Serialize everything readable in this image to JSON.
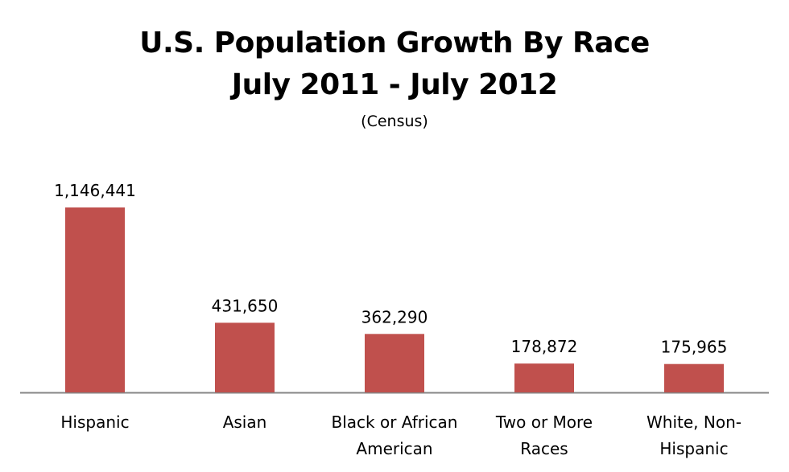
{
  "chart_data": {
    "type": "bar",
    "title_lines": [
      "U.S. Population Growth By Race",
      "July 2011 - July 2012"
    ],
    "subtitle": "(Census)",
    "categories": [
      [
        "Hispanic"
      ],
      [
        "Asian"
      ],
      [
        "Black or African",
        "American"
      ],
      [
        "Two or More",
        "Races"
      ],
      [
        "White, Non-",
        "Hispanic"
      ]
    ],
    "values": [
      1146441,
      431650,
      362290,
      178872,
      175965
    ],
    "value_labels": [
      "1,146,441",
      "431,650",
      "362,290",
      "178,872",
      "175,965"
    ],
    "bar_color": "#c0504d",
    "axis_color": "#868686",
    "ylim": [
      0,
      1146441
    ],
    "grid": false,
    "legend": "none"
  }
}
